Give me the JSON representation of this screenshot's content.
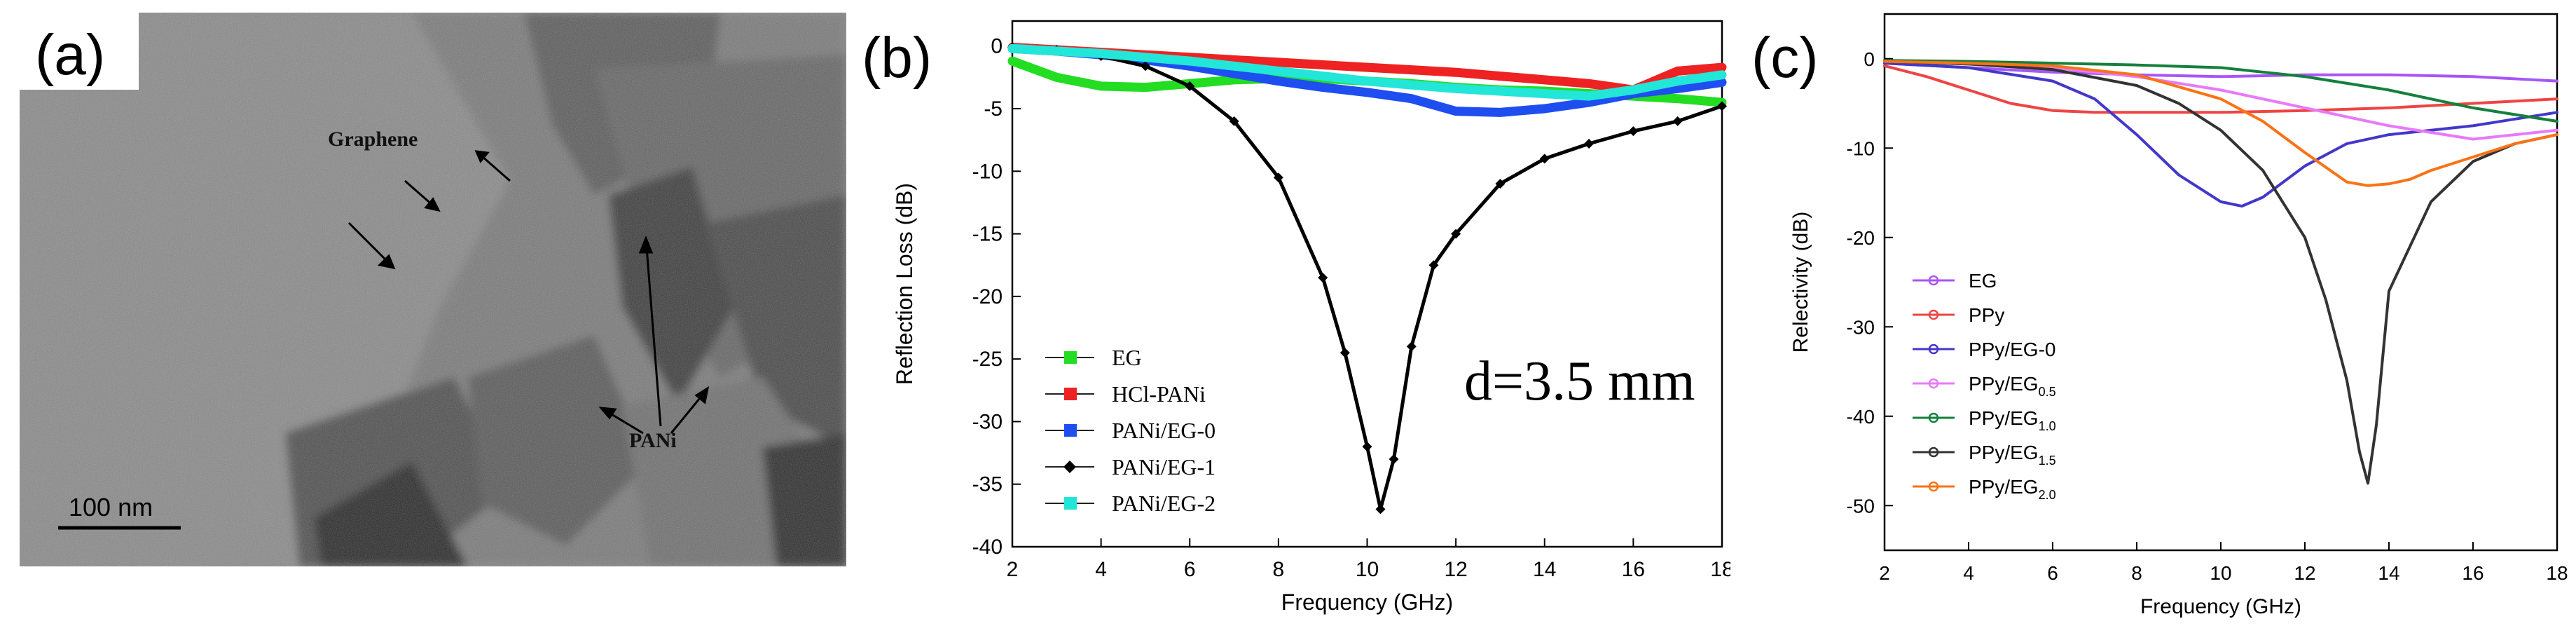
{
  "panel_a": {
    "label": "(a)",
    "annotations": {
      "graphene": "Graphene",
      "pani": "PANi"
    },
    "scale_bar": "100 nm"
  },
  "chart_data": [
    {
      "panel": "(b)",
      "type": "line",
      "xlabel": "Frequency (GHz)",
      "ylabel": "Reflection Loss (dB)",
      "xlim": [
        2,
        18
      ],
      "ylim": [
        -40,
        2
      ],
      "xticks": [
        2,
        4,
        6,
        8,
        10,
        12,
        14,
        16,
        18
      ],
      "yticks": [
        0,
        -5,
        -10,
        -15,
        -20,
        -25,
        -30,
        -35,
        -40
      ],
      "annotation": "d=3.5 mm",
      "legend_position": "bottom-left",
      "series": [
        {
          "name": "EG",
          "color": "#22dd22",
          "x": [
            2,
            3,
            4,
            5,
            6,
            7,
            8,
            9,
            10,
            11,
            12,
            13,
            14,
            15,
            16,
            17,
            18
          ],
          "y": [
            -1.2,
            -2.5,
            -3.2,
            -3.3,
            -3.0,
            -2.7,
            -2.6,
            -2.6,
            -2.8,
            -3.0,
            -3.3,
            -3.5,
            -3.6,
            -3.8,
            -4.0,
            -4.2,
            -4.5
          ]
        },
        {
          "name": "HCl-PANi",
          "color": "#ee2222",
          "x": [
            2,
            3,
            4,
            5,
            6,
            7,
            8,
            9,
            10,
            11,
            12,
            13,
            14,
            15,
            16,
            17,
            18
          ],
          "y": [
            -0.1,
            -0.3,
            -0.5,
            -0.7,
            -0.9,
            -1.1,
            -1.3,
            -1.5,
            -1.7,
            -1.9,
            -2.1,
            -2.4,
            -2.7,
            -3.0,
            -3.5,
            -2.0,
            -1.7
          ]
        },
        {
          "name": "PANi/EG-0",
          "color": "#1e4ef0",
          "x": [
            2,
            3,
            4,
            5,
            6,
            7,
            8,
            9,
            10,
            11,
            12,
            13,
            14,
            15,
            16,
            17,
            18
          ],
          "y": [
            -0.2,
            -0.4,
            -0.7,
            -1.1,
            -1.6,
            -2.2,
            -2.8,
            -3.3,
            -3.7,
            -4.2,
            -5.2,
            -5.3,
            -5.0,
            -4.5,
            -3.8,
            -3.4,
            -2.9
          ]
        },
        {
          "name": "PANi/EG-1",
          "color": "#000000",
          "x": [
            2,
            3,
            4,
            5,
            6,
            7,
            8,
            9,
            9.5,
            10,
            10.3,
            10.6,
            11,
            11.5,
            12,
            13,
            14,
            15,
            16,
            17,
            18
          ],
          "y": [
            -0.1,
            -0.3,
            -0.8,
            -1.6,
            -3.2,
            -6.0,
            -10.5,
            -18.5,
            -24.5,
            -32.0,
            -37.0,
            -33.0,
            -24.0,
            -17.5,
            -15.0,
            -11.0,
            -9.0,
            -7.8,
            -6.8,
            -6.0,
            -4.8
          ]
        },
        {
          "name": "PANi/EG-2",
          "color": "#22e6d8",
          "x": [
            2,
            3,
            4,
            5,
            6,
            7,
            8,
            9,
            10,
            11,
            12,
            13,
            14,
            15,
            16,
            17,
            18
          ],
          "y": [
            -0.2,
            -0.4,
            -0.6,
            -0.9,
            -1.2,
            -1.6,
            -2.0,
            -2.4,
            -2.8,
            -3.1,
            -3.4,
            -3.6,
            -3.8,
            -4.0,
            -3.5,
            -2.8,
            -2.3
          ]
        }
      ]
    },
    {
      "panel": "(c)",
      "type": "line",
      "xlabel": "Frequency (GHz)",
      "ylabel": "Relectivity (dB)",
      "xlim": [
        2,
        18
      ],
      "ylim": [
        -55,
        5
      ],
      "xticks": [
        2,
        4,
        6,
        8,
        10,
        12,
        14,
        16,
        18
      ],
      "yticks": [
        0,
        -10,
        -20,
        -30,
        -40,
        -50
      ],
      "legend_position": "bottom-left",
      "series": [
        {
          "name": "EG",
          "sub": "",
          "color": "#a855f7",
          "x": [
            2,
            4,
            6,
            8,
            10,
            12,
            14,
            16,
            18
          ],
          "y": [
            -0.5,
            -1.0,
            -1.5,
            -1.8,
            -2.0,
            -1.8,
            -1.8,
            -2.0,
            -2.5
          ]
        },
        {
          "name": "PPy",
          "sub": "",
          "color": "#ef4444",
          "x": [
            2,
            3,
            4,
            5,
            6,
            7,
            8,
            10,
            12,
            14,
            16,
            18
          ],
          "y": [
            -0.8,
            -2.0,
            -3.5,
            -5.0,
            -5.8,
            -6.0,
            -6.0,
            -6.0,
            -5.8,
            -5.5,
            -5.0,
            -4.5
          ]
        },
        {
          "name": "PPy/EG-0",
          "sub": "",
          "color": "#4338ca",
          "x": [
            2,
            4,
            6,
            7,
            8,
            9,
            10,
            10.5,
            11,
            12,
            13,
            14,
            16,
            18
          ],
          "y": [
            -0.5,
            -1.0,
            -2.5,
            -4.5,
            -8.5,
            -13.0,
            -16.0,
            -16.5,
            -15.5,
            -12.0,
            -9.5,
            -8.5,
            -7.5,
            -6.0
          ]
        },
        {
          "name": "PPy/EG",
          "sub": "0.5",
          "color": "#e879f9",
          "x": [
            2,
            4,
            6,
            8,
            10,
            12,
            14,
            16,
            18
          ],
          "y": [
            -0.3,
            -0.6,
            -1.0,
            -2.0,
            -3.5,
            -5.5,
            -7.5,
            -9.0,
            -8.0
          ]
        },
        {
          "name": "PPy/EG",
          "sub": "1.0",
          "color": "#15803d",
          "x": [
            2,
            4,
            6,
            8,
            10,
            12,
            14,
            16,
            18
          ],
          "y": [
            -0.2,
            -0.3,
            -0.5,
            -0.7,
            -1.0,
            -2.0,
            -3.5,
            -5.5,
            -7.0
          ]
        },
        {
          "name": "PPy/EG",
          "sub": "1.5",
          "color": "#333333",
          "x": [
            2,
            4,
            6,
            8,
            9,
            10,
            11,
            12,
            12.5,
            13,
            13.3,
            13.5,
            13.7,
            14,
            15,
            16,
            17,
            18
          ],
          "y": [
            -0.3,
            -0.6,
            -1.2,
            -3.0,
            -5.0,
            -8.0,
            -12.5,
            -20.0,
            -27.0,
            -36.0,
            -44.0,
            -47.5,
            -41.0,
            -26.0,
            -16.0,
            -11.5,
            -9.5,
            -8.5
          ]
        },
        {
          "name": "PPy/EG",
          "sub": "2.0",
          "color": "#f97316",
          "x": [
            2,
            4,
            6,
            8,
            10,
            11,
            12,
            13,
            13.5,
            14,
            14.5,
            15,
            16,
            17,
            18
          ],
          "y": [
            -0.3,
            -0.5,
            -0.8,
            -1.8,
            -4.5,
            -7.0,
            -10.5,
            -13.8,
            -14.2,
            -14.0,
            -13.5,
            -12.5,
            -11.0,
            -9.5,
            -8.5
          ]
        }
      ]
    }
  ]
}
